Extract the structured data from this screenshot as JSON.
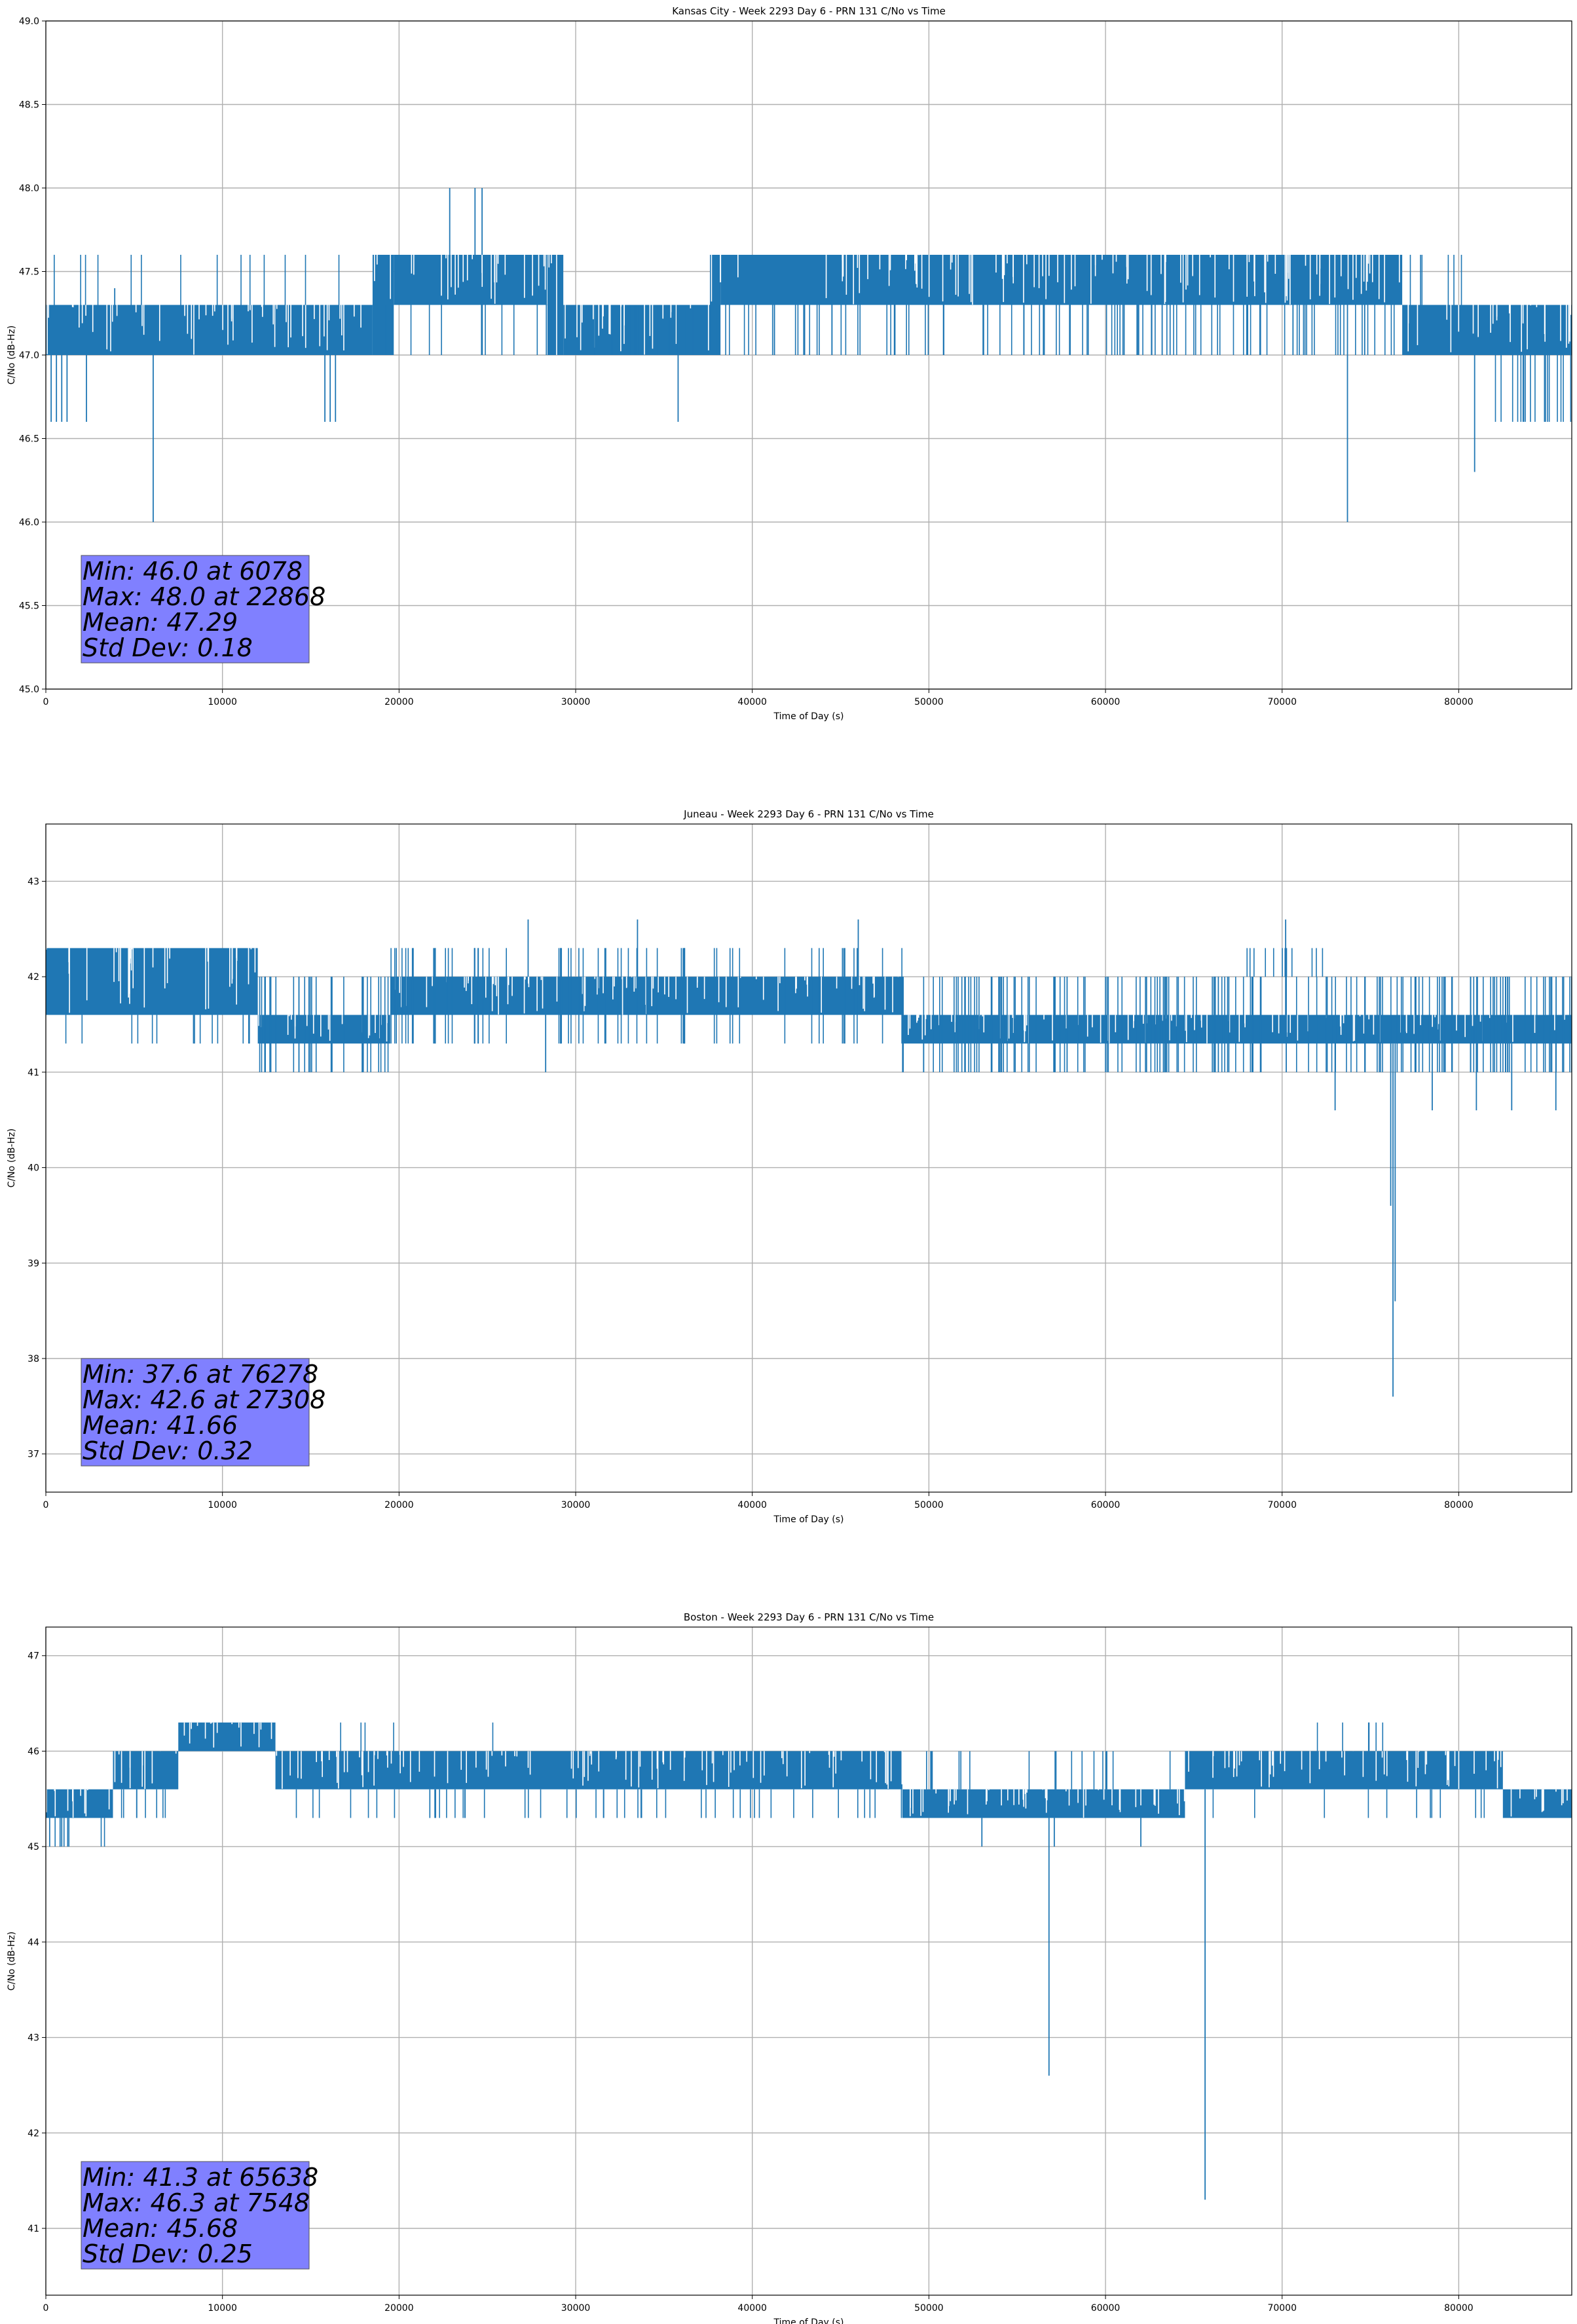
{
  "figure": {
    "background": "#ffffff",
    "series_color": "#1f77b4",
    "stats_box_color": "#8080ff"
  },
  "chart_data": [
    {
      "type": "line",
      "title": "Kansas City - Week 2293 Day 6 - PRN 131 C/No vs Time",
      "xlabel": "Time of Day (s)",
      "ylabel": "C/No (dB-Hz)",
      "xlim": [
        0,
        86400
      ],
      "ylim": [
        45.0,
        49.0
      ],
      "xticks": [
        0,
        10000,
        20000,
        30000,
        40000,
        50000,
        60000,
        70000,
        80000
      ],
      "yticks": [
        45.0,
        45.5,
        46.0,
        46.5,
        47.0,
        47.5,
        48.0,
        48.5,
        49.0
      ],
      "ytick_decimals": 1,
      "grid": true,
      "series": [
        {
          "segments": [
            {
              "x": [
                0,
                3800
              ],
              "lo": 47.0,
              "hi": 47.3
            },
            {
              "x": [
                3800,
                18500
              ],
              "lo": 47.0,
              "hi": 47.3
            },
            {
              "x": [
                18500,
                19700
              ],
              "lo": 47.0,
              "hi": 47.6
            },
            {
              "x": [
                19700,
                28400
              ],
              "lo": 47.3,
              "hi": 47.6
            },
            {
              "x": [
                28400,
                29300
              ],
              "lo": 47.0,
              "hi": 47.6
            },
            {
              "x": [
                29300,
                37600
              ],
              "lo": 47.0,
              "hi": 47.3
            },
            {
              "x": [
                37600,
                38200
              ],
              "lo": 47.0,
              "hi": 47.6
            },
            {
              "x": [
                38200,
                76800
              ],
              "lo": 47.3,
              "hi": 47.6
            },
            {
              "x": [
                76800,
                86400
              ],
              "lo": 47.0,
              "hi": 47.3
            }
          ],
          "sparse_ranges": [
            {
              "x": [
                0,
                17000
              ],
              "lo": 47.3,
              "hi": 47.6,
              "count": 14
            },
            {
              "x": [
                19000,
                37600
              ],
              "lo": 47.0,
              "hi": 47.3,
              "count": 30
            },
            {
              "x": [
                37600,
                76800
              ],
              "lo": 47.0,
              "hi": 47.3,
              "count": 110
            },
            {
              "x": [
                76800,
                80400
              ],
              "lo": 47.3,
              "hi": 47.6,
              "count": 6
            },
            {
              "x": [
                82000,
                86400
              ],
              "lo": 46.6,
              "hi": 47.0,
              "count": 18
            }
          ],
          "spikes": [
            {
              "x": 300,
              "y": 46.6
            },
            {
              "x": 600,
              "y": 46.6
            },
            {
              "x": 900,
              "y": 46.6
            },
            {
              "x": 1200,
              "y": 46.6
            },
            {
              "x": 2300,
              "y": 46.6
            },
            {
              "x": 6078,
              "y": 46.0
            },
            {
              "x": 15800,
              "y": 46.6
            },
            {
              "x": 16100,
              "y": 46.6
            },
            {
              "x": 16400,
              "y": 46.6
            },
            {
              "x": 35800,
              "y": 46.6
            },
            {
              "x": 73700,
              "y": 46.0
            },
            {
              "x": 80900,
              "y": 46.3
            },
            {
              "x": 22868,
              "y": 48.0
            },
            {
              "x": 24300,
              "y": 48.0
            },
            {
              "x": 24700,
              "y": 48.0
            },
            {
              "x": 3900,
              "y": 47.4
            }
          ]
        }
      ],
      "stats": [
        "Min: 46.0 at 6078",
        "Max: 48.0 at 22868",
        "Mean: 47.29",
        "Std Dev: 0.18"
      ]
    },
    {
      "type": "line",
      "title": "Juneau - Week 2293 Day 6 - PRN 131 C/No vs Time",
      "xlabel": "Time of Day (s)",
      "ylabel": "C/No (dB-Hz)",
      "xlim": [
        0,
        86400
      ],
      "ylim": [
        36.6,
        43.6
      ],
      "xticks": [
        0,
        10000,
        20000,
        30000,
        40000,
        50000,
        60000,
        70000,
        80000
      ],
      "yticks": [
        37,
        38,
        39,
        40,
        41,
        42,
        43
      ],
      "ytick_decimals": 0,
      "grid": true,
      "series": [
        {
          "segments": [
            {
              "x": [
                0,
                12000
              ],
              "lo": 41.6,
              "hi": 42.3
            },
            {
              "x": [
                12000,
                19500
              ],
              "lo": 41.3,
              "hi": 41.6
            },
            {
              "x": [
                19500,
                48500
              ],
              "lo": 41.6,
              "hi": 42.0
            },
            {
              "x": [
                48500,
                86400
              ],
              "lo": 41.3,
              "hi": 41.6
            }
          ],
          "sparse_ranges": [
            {
              "x": [
                0,
                12000
              ],
              "lo": 41.3,
              "hi": 41.6,
              "count": 14
            },
            {
              "x": [
                12000,
                19500
              ],
              "lo": 41.0,
              "hi": 42.0,
              "count": 28
            },
            {
              "x": [
                19500,
                48500
              ],
              "lo": 41.3,
              "hi": 42.3,
              "count": 60
            },
            {
              "x": [
                48500,
                86400
              ],
              "lo": 41.0,
              "hi": 42.0,
              "count": 150
            },
            {
              "x": [
                68000,
                72500
              ],
              "lo": 42.0,
              "hi": 42.3,
              "count": 12
            }
          ],
          "spikes": [
            {
              "x": 76278,
              "y": 37.6
            },
            {
              "x": 76150,
              "y": 39.6
            },
            {
              "x": 76400,
              "y": 38.6
            },
            {
              "x": 73000,
              "y": 40.6
            },
            {
              "x": 78500,
              "y": 40.6
            },
            {
              "x": 81000,
              "y": 40.6
            },
            {
              "x": 83000,
              "y": 40.6
            },
            {
              "x": 85500,
              "y": 40.6
            },
            {
              "x": 28300,
              "y": 41.0
            },
            {
              "x": 49700,
              "y": 41.0
            },
            {
              "x": 27308,
              "y": 42.6
            },
            {
              "x": 33500,
              "y": 42.6
            },
            {
              "x": 46000,
              "y": 42.6
            },
            {
              "x": 70200,
              "y": 42.6
            }
          ]
        }
      ],
      "stats": [
        "Min: 37.6 at 76278",
        "Max: 42.6 at 27308",
        "Mean: 41.66",
        "Std Dev: 0.32"
      ]
    },
    {
      "type": "line",
      "title": "Boston - Week 2293 Day 6 - PRN 131 C/No vs Time",
      "xlabel": "Time of Day (s)",
      "ylabel": "C/No (dB-Hz)",
      "xlim": [
        0,
        86400
      ],
      "ylim": [
        40.3,
        47.3
      ],
      "xticks": [
        0,
        10000,
        20000,
        30000,
        40000,
        50000,
        60000,
        70000,
        80000
      ],
      "yticks": [
        41,
        42,
        43,
        44,
        45,
        46,
        47
      ],
      "ytick_decimals": 0,
      "grid": true,
      "series": [
        {
          "segments": [
            {
              "x": [
                0,
                3800
              ],
              "lo": 45.3,
              "hi": 45.6
            },
            {
              "x": [
                3800,
                7500
              ],
              "lo": 45.6,
              "hi": 46.0
            },
            {
              "x": [
                7500,
                13000
              ],
              "lo": 46.0,
              "hi": 46.3
            },
            {
              "x": [
                13000,
                48500
              ],
              "lo": 45.6,
              "hi": 46.0
            },
            {
              "x": [
                48500,
                64500
              ],
              "lo": 45.3,
              "hi": 45.6
            },
            {
              "x": [
                64500,
                82500
              ],
              "lo": 45.6,
              "hi": 46.0
            },
            {
              "x": [
                82500,
                86400
              ],
              "lo": 45.3,
              "hi": 45.6
            }
          ],
          "sparse_ranges": [
            {
              "x": [
                0,
                3800
              ],
              "lo": 45.0,
              "hi": 45.3,
              "count": 10
            },
            {
              "x": [
                3800,
                7500
              ],
              "lo": 45.3,
              "hi": 45.6,
              "count": 8
            },
            {
              "x": [
                13000,
                48500
              ],
              "lo": 45.3,
              "hi": 45.6,
              "count": 50
            },
            {
              "x": [
                13000,
                26500
              ],
              "lo": 46.0,
              "hi": 46.3,
              "count": 5
            },
            {
              "x": [
                48500,
                64500
              ],
              "lo": 45.6,
              "hi": 46.0,
              "count": 18
            },
            {
              "x": [
                64500,
                82500
              ],
              "lo": 45.3,
              "hi": 45.6,
              "count": 12
            },
            {
              "x": [
                71000,
                76000
              ],
              "lo": 46.0,
              "hi": 46.3,
              "count": 6
            }
          ],
          "spikes": [
            {
              "x": 56800,
              "y": 42.6
            },
            {
              "x": 65638,
              "y": 41.3
            },
            {
              "x": 53000,
              "y": 45.0
            },
            {
              "x": 57100,
              "y": 45.0
            },
            {
              "x": 62000,
              "y": 45.0
            },
            {
              "x": 900,
              "y": 45.0
            },
            {
              "x": 7548,
              "y": 46.3
            }
          ]
        }
      ],
      "stats": [
        "Min: 41.3 at 65638",
        "Max: 46.3 at 7548",
        "Mean: 45.68",
        "Std Dev: 0.25"
      ]
    }
  ]
}
